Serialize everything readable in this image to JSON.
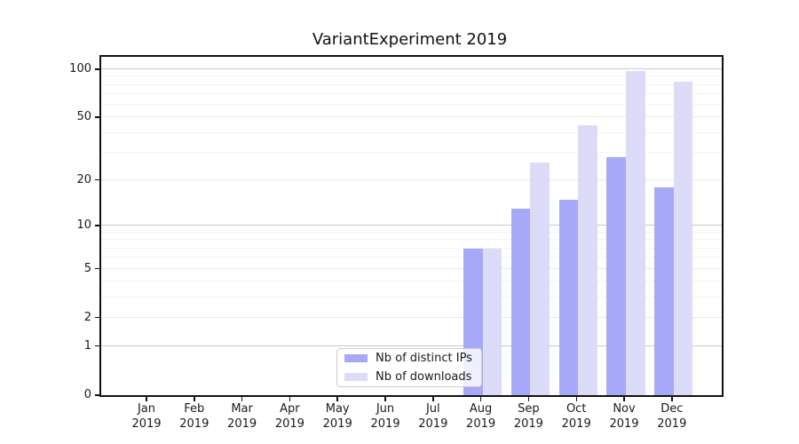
{
  "title": "VariantExperiment 2019",
  "legend": {
    "items": [
      {
        "label": "Nb of distinct IPs",
        "color": "#a8a8f8"
      },
      {
        "label": "Nb of downloads",
        "color": "#dcdcf8"
      }
    ]
  },
  "chart_data": {
    "type": "bar",
    "title": "VariantExperiment 2019",
    "categories": [
      "Jan 2019",
      "Feb 2019",
      "Mar 2019",
      "Apr 2019",
      "May 2019",
      "Jun 2019",
      "Jul 2019",
      "Aug 2019",
      "Sep 2019",
      "Oct 2019",
      "Nov 2019",
      "Dec 2019"
    ],
    "x_tick_month": [
      "Jan",
      "Feb",
      "Mar",
      "Apr",
      "May",
      "Jun",
      "Jul",
      "Aug",
      "Sep",
      "Oct",
      "Nov",
      "Dec"
    ],
    "x_tick_year": "2019",
    "series": [
      {
        "name": "Nb of distinct IPs",
        "color": "#a8a8f8",
        "values": [
          0,
          0,
          0,
          0,
          0,
          0,
          0,
          7,
          13,
          15,
          28,
          18
        ]
      },
      {
        "name": "Nb of downloads",
        "color": "#dcdcf8",
        "values": [
          0,
          0,
          0,
          0,
          0,
          0,
          0,
          7,
          26,
          45,
          97,
          84
        ]
      }
    ],
    "y_scale": "log(1+y)",
    "y_ticks": [
      100,
      50,
      20,
      10,
      5,
      2,
      1,
      0
    ],
    "y_major_gridlines": [
      1,
      10,
      100
    ],
    "y_mid_gridlines": [
      2,
      5,
      20,
      50
    ],
    "y_minor_gridlines": [
      3,
      4,
      6,
      7,
      8,
      9,
      30,
      40,
      60,
      70,
      80,
      90
    ],
    "y_axis_max": 120,
    "grid": true,
    "legend_position": "lower center-right inside plot",
    "background_color": "#ffffff",
    "text_color": "#1a1a1a"
  }
}
